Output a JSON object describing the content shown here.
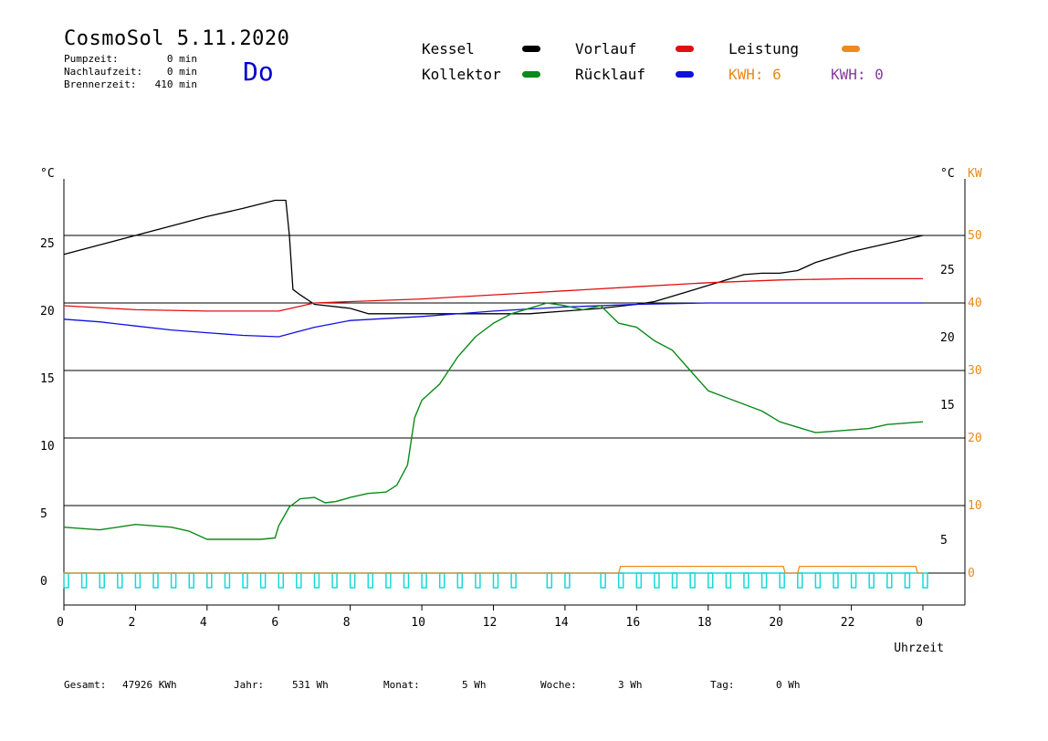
{
  "header": {
    "title": "CosmoSol 5.11.2020",
    "weekday": "Do",
    "stats": [
      {
        "label": "Pumpzeit:",
        "value": "0 min"
      },
      {
        "label": "Nachlaufzeit:",
        "value": "0 min"
      },
      {
        "label": "Brennerzeit:",
        "value": "410 min"
      }
    ]
  },
  "legend": {
    "kessel": {
      "label": "Kessel",
      "color": "#000000"
    },
    "vorlauf": {
      "label": "Vorlauf",
      "color": "#e01010"
    },
    "leistung": {
      "label": "Leistung",
      "color": "#f08a1c"
    },
    "kollektor": {
      "label": "Kollektor",
      "color": "#0a8a1a"
    },
    "ruecklauf": {
      "label": "Rücklauf",
      "color": "#1010e0"
    },
    "kwh1": {
      "label": "KWH: 6",
      "color": "#e68a1c"
    },
    "kwh2": {
      "label": "KWH: 0",
      "color": "#8a3aa0"
    }
  },
  "footer": {
    "gesamt_label": "Gesamt:",
    "gesamt_value": "47926 KWh",
    "jahr_label": "Jahr:",
    "jahr_value": "531 Wh",
    "monat_label": "Monat:",
    "monat_value": "5 Wh",
    "woche_label": "Woche:",
    "woche_value": "3 Wh",
    "tag_label": "Tag:",
    "tag_value": "0 Wh"
  },
  "chart_data": {
    "type": "line",
    "xlabel": "Uhrzeit",
    "xlim": [
      0,
      24
    ],
    "x_ticks": [
      "0",
      "2",
      "4",
      "6",
      "8",
      "10",
      "12",
      "14",
      "16",
      "18",
      "20",
      "22",
      "0"
    ],
    "y_left_label": "°C",
    "y_left_ticks": [
      0,
      5,
      10,
      15,
      20,
      25
    ],
    "y_right_label": "°C",
    "y_right_ticks": [
      "5",
      "15",
      "20",
      "25"
    ],
    "y_right2_label": "KW",
    "y_right2_ticks": [
      0,
      10,
      20,
      30,
      40,
      50
    ],
    "ylim": [
      -1.5,
      29
    ],
    "grid": "horizontal",
    "colors": {
      "kessel": "#000000",
      "vorlauf": "#e01010",
      "ruecklauf": "#1010e0",
      "kollektor": "#0a8a1a",
      "leistung": "#f08a1c",
      "pump": "#18d8d8"
    },
    "series": [
      {
        "name": "Kessel",
        "key": "kessel",
        "x": [
          0,
          1,
          2,
          3,
          4,
          5,
          5.9,
          6.2,
          6.3,
          6.4,
          6.6,
          7,
          8,
          8.5,
          10,
          12,
          13,
          14,
          15,
          16,
          16.5,
          17,
          18,
          19,
          19.5,
          20,
          20.5,
          21,
          22,
          23,
          24
        ],
        "y": [
          23.6,
          24.3,
          25.0,
          25.7,
          26.4,
          27.0,
          27.6,
          27.6,
          25.0,
          21.0,
          20.6,
          19.9,
          19.6,
          19.2,
          19.2,
          19.2,
          19.2,
          19.4,
          19.6,
          19.9,
          20.1,
          20.5,
          21.3,
          22.1,
          22.2,
          22.2,
          22.4,
          23.0,
          23.8,
          24.4,
          25.0
        ]
      },
      {
        "name": "Vorlauf",
        "key": "vorlauf",
        "x": [
          0,
          2,
          4,
          6,
          7,
          8,
          10,
          12,
          14,
          16,
          18,
          20,
          22,
          24
        ],
        "y": [
          19.8,
          19.5,
          19.4,
          19.4,
          20.0,
          20.1,
          20.3,
          20.6,
          20.9,
          21.2,
          21.5,
          21.7,
          21.8,
          21.8
        ]
      },
      {
        "name": "Rücklauf",
        "key": "ruecklauf",
        "x": [
          0,
          1,
          2,
          3,
          4,
          5,
          6,
          7,
          8,
          10,
          12,
          14,
          16,
          18,
          20,
          22,
          24
        ],
        "y": [
          18.8,
          18.6,
          18.3,
          18.0,
          17.8,
          17.6,
          17.5,
          18.2,
          18.7,
          19.0,
          19.4,
          19.7,
          19.9,
          20.0,
          20.0,
          20.0,
          20.0
        ]
      },
      {
        "name": "Kollektor",
        "key": "kollektor",
        "x": [
          0,
          0.5,
          1,
          1.5,
          2,
          2.5,
          3,
          3.5,
          4,
          4.5,
          5,
          5.5,
          5.9,
          6,
          6.3,
          6.6,
          7,
          7.3,
          7.6,
          8,
          8.5,
          9,
          9.3,
          9.6,
          9.8,
          10,
          10.5,
          11,
          11.5,
          12,
          12.5,
          13,
          13.5,
          14,
          14.5,
          15,
          15.5,
          16,
          16.5,
          17,
          17.5,
          18,
          18.5,
          19,
          19.5,
          20,
          20.5,
          21,
          21.5,
          22,
          22.5,
          23,
          23.5,
          24
        ],
        "y": [
          3.4,
          3.3,
          3.2,
          3.4,
          3.6,
          3.5,
          3.4,
          3.1,
          2.5,
          2.5,
          2.5,
          2.5,
          2.6,
          3.5,
          4.9,
          5.5,
          5.6,
          5.2,
          5.3,
          5.6,
          5.9,
          6.0,
          6.5,
          8.0,
          11.5,
          12.8,
          14.0,
          16.0,
          17.5,
          18.5,
          19.2,
          19.6,
          20.0,
          19.8,
          19.5,
          19.8,
          18.5,
          18.2,
          17.2,
          16.5,
          15.0,
          13.5,
          13.0,
          12.5,
          12.0,
          11.2,
          10.8,
          10.4,
          10.5,
          10.6,
          10.7,
          11.0,
          11.1,
          11.2
        ]
      },
      {
        "name": "Leistung",
        "key": "leistung",
        "x": [
          0,
          15.5,
          15.55,
          20.1,
          20.15,
          20.5,
          20.55,
          23.8,
          23.85,
          24
        ],
        "y": [
          0,
          0,
          0.5,
          0.5,
          0,
          0,
          0.5,
          0.5,
          0,
          0
        ]
      }
    ],
    "pump_pulses_h": [
      0,
      0.5,
      1,
      1.5,
      2,
      2.5,
      3,
      3.5,
      4,
      4.5,
      5,
      5.5,
      6,
      6.5,
      7,
      7.5,
      8,
      8.5,
      9,
      9.5,
      10,
      10.5,
      11,
      11.5,
      12,
      12.5,
      13.5,
      14,
      15,
      15.5,
      16,
      16.5,
      17,
      17.5,
      18,
      18.5,
      19,
      19.5,
      20,
      20.5,
      21,
      21.5,
      22,
      22.5,
      23,
      23.5,
      24
    ]
  }
}
